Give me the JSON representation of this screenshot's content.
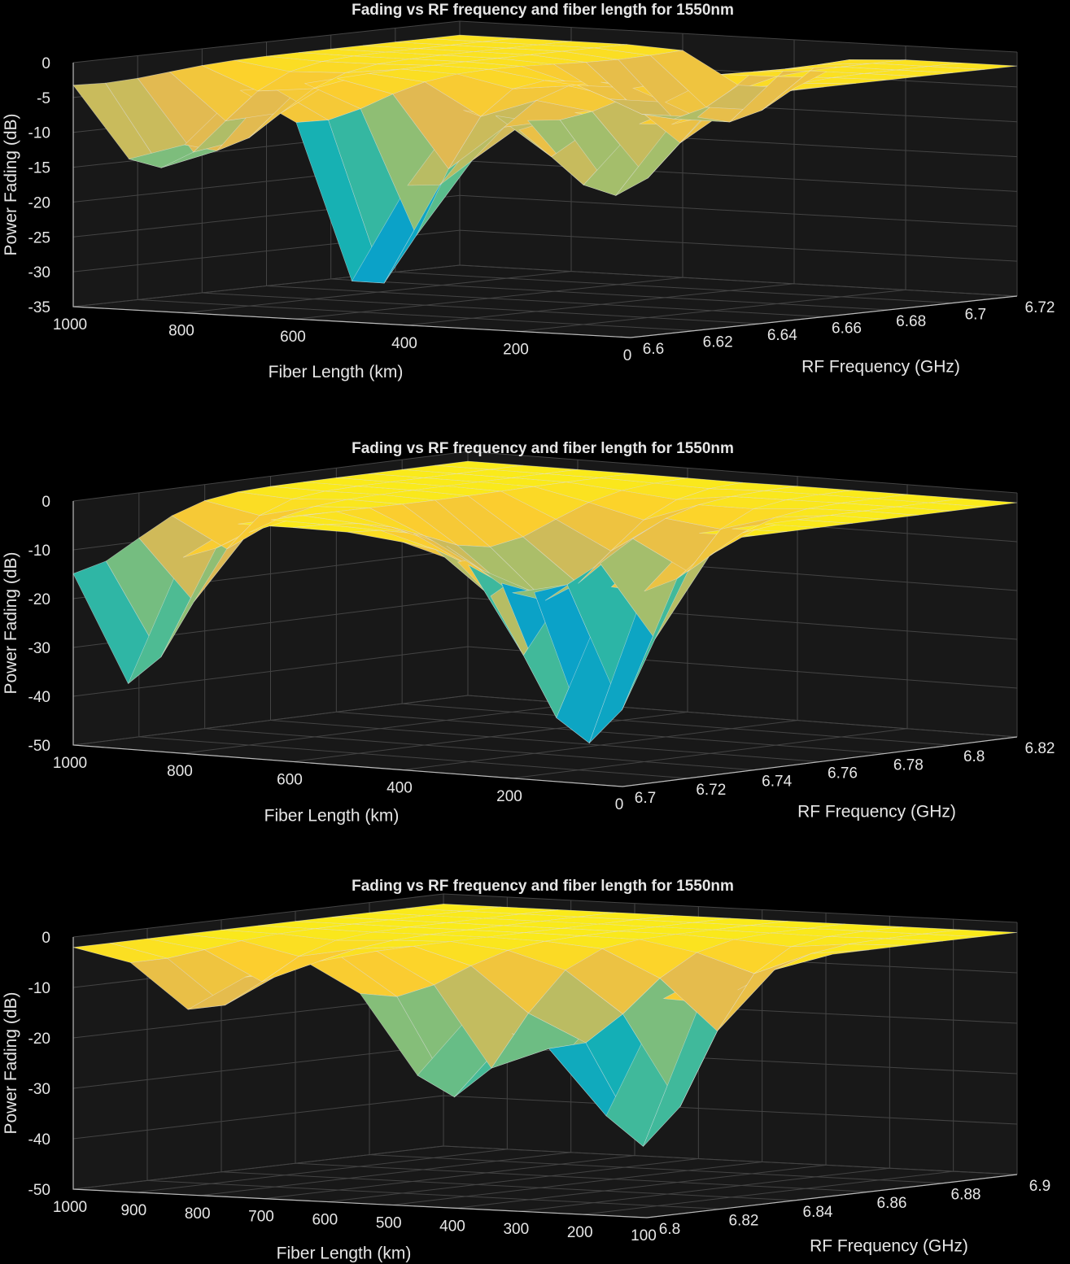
{
  "colors": {
    "background": "#000000",
    "axes_background": "#181818",
    "grid": "#444444",
    "text": "#e6e6e6"
  },
  "colormap": "parula",
  "chart_data": [
    {
      "type": "surface",
      "title": "Fading vs RF frequency and fiber length for 1550nm",
      "xlabel": "Fiber Length (km)",
      "ylabel": "RF Frequency (GHz)",
      "zlabel": "Power Fading (dB)",
      "xlim": [
        0,
        1000
      ],
      "ylim": [
        6.6,
        6.72
      ],
      "zlim": [
        -35,
        0
      ],
      "xticks": [
        "1000",
        "800",
        "600",
        "400",
        "200",
        "0"
      ],
      "yticks": [
        "6.6",
        "6.62",
        "6.64",
        "6.66",
        "6.68",
        "6.7",
        "6.72"
      ],
      "zticks": [
        "0",
        "-5",
        "-10",
        "-15",
        "-20",
        "-25",
        "-30",
        "-35"
      ],
      "grid": true,
      "fiber_length_km": [
        0,
        100,
        200,
        300,
        400,
        500,
        600,
        700,
        800,
        900,
        1000
      ],
      "rf_frequency_ghz": [
        6.6,
        6.61,
        6.62,
        6.63,
        6.64,
        6.65,
        6.66,
        6.67,
        6.68,
        6.69,
        6.7,
        6.71,
        6.72
      ],
      "nulls": [
        {
          "length_km": 480,
          "f_ghz": 6.606,
          "depth_db": -30
        },
        {
          "length_km": 860,
          "f_ghz": 6.61,
          "depth_db": -16
        },
        {
          "length_km": 200,
          "f_ghz": 6.63,
          "depth_db": -15
        },
        {
          "length_km": 450,
          "f_ghz": 6.7,
          "depth_db": -12
        }
      ]
    },
    {
      "type": "surface",
      "title": "Fading vs RF frequency and fiber length for 1550nm",
      "xlabel": "Fiber Length (km)",
      "ylabel": "RF Frequency (GHz)",
      "zlabel": "Power Fading (dB)",
      "xlim": [
        0,
        1000
      ],
      "ylim": [
        6.7,
        6.82
      ],
      "zlim": [
        -50,
        0
      ],
      "xticks": [
        "1000",
        "800",
        "600",
        "400",
        "200",
        "0"
      ],
      "yticks": [
        "6.7",
        "6.72",
        "6.74",
        "6.76",
        "6.78",
        "6.8",
        "6.82"
      ],
      "zticks": [
        "0",
        "-10",
        "-20",
        "-30",
        "-40",
        "-50"
      ],
      "grid": true,
      "fiber_length_km": [
        0,
        100,
        200,
        300,
        400,
        500,
        600,
        700,
        800,
        900,
        1000
      ],
      "rf_frequency_ghz": [
        6.7,
        6.71,
        6.72,
        6.73,
        6.74,
        6.75,
        6.76,
        6.77,
        6.78,
        6.79,
        6.8,
        6.81,
        6.82
      ],
      "nulls": [
        {
          "length_km": 910,
          "f_ghz": 6.7,
          "depth_db": -35
        },
        {
          "length_km": 300,
          "f_ghz": 6.74,
          "depth_db": -45
        },
        {
          "length_km": 520,
          "f_ghz": 6.76,
          "depth_db": -20
        }
      ]
    },
    {
      "type": "surface",
      "title": "Fading vs RF frequency and fiber length for 1550nm",
      "xlabel": "Fiber Length (km)",
      "ylabel": "RF Frequency (GHz)",
      "zlabel": "Power Fading (dB)",
      "xlim": [
        50,
        1000
      ],
      "ylim": [
        6.8,
        6.9
      ],
      "zlim": [
        -50,
        0
      ],
      "xticks": [
        "1000",
        "900",
        "800",
        "700",
        "600",
        "500",
        "400",
        "300",
        "200",
        "100"
      ],
      "yticks": [
        "6.8",
        "6.82",
        "6.84",
        "6.86",
        "6.88",
        "6.9"
      ],
      "zticks": [
        "0",
        "-10",
        "-20",
        "-30",
        "-40",
        "-50"
      ],
      "grid": true,
      "fiber_length_km": [
        50,
        145,
        240,
        335,
        430,
        525,
        620,
        715,
        810,
        905,
        1000
      ],
      "rf_frequency_ghz": [
        6.8,
        6.81,
        6.82,
        6.83,
        6.84,
        6.85,
        6.86,
        6.87,
        6.88,
        6.89,
        6.9
      ],
      "nulls": [
        {
          "length_km": 430,
          "f_ghz": 6.81,
          "depth_db": -27
        },
        {
          "length_km": 250,
          "f_ghz": 6.83,
          "depth_db": -38
        },
        {
          "length_km": 800,
          "f_ghz": 6.805,
          "depth_db": -12
        }
      ]
    }
  ]
}
